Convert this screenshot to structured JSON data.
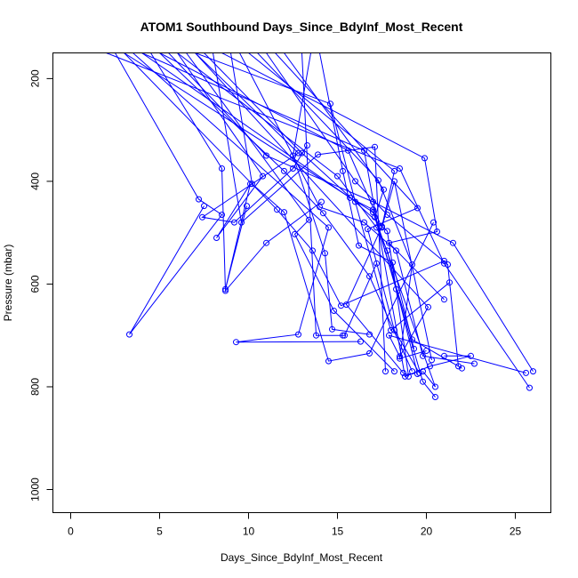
{
  "chart_data": {
    "type": "line",
    "title": "ATOM1 Southbound Days_Since_BdyInf_Most_Recent",
    "xlabel": "Days_Since_BdyInf_Most_Recent",
    "ylabel": "Pressure (mbar)",
    "xlim": [
      -1,
      27
    ],
    "ylim": [
      1045,
      150
    ],
    "y_reversed": true,
    "xticks": [
      0,
      5,
      10,
      15,
      20,
      25
    ],
    "yticks": [
      200,
      400,
      600,
      800,
      1000
    ],
    "grid": false,
    "color": "#0000ff",
    "series": [
      {
        "x": [
          2,
          18.5,
          21,
          25.8
        ],
        "y": [
          150,
          375,
          560,
          802
        ]
      },
      {
        "x": [
          2.5,
          7.2,
          8.5,
          3.3,
          7.5
        ],
        "y": [
          150,
          435,
          465,
          698,
          448
        ]
      },
      {
        "x": [
          3,
          17,
          20.5,
          19.8
        ],
        "y": [
          150,
          460,
          800,
          770
        ]
      },
      {
        "x": [
          3.5,
          14.5,
          12.8,
          9.3,
          16.3
        ],
        "y": [
          150,
          490,
          698,
          713,
          712
        ]
      },
      {
        "x": [
          4,
          16.5,
          18.8,
          20.2,
          22.5,
          21
        ],
        "y": [
          150,
          340,
          780,
          760,
          740,
          740
        ]
      },
      {
        "x": [
          4.5,
          8.5,
          8.7,
          11,
          14.1
        ],
        "y": [
          150,
          375,
          613,
          520,
          440
        ]
      },
      {
        "x": [
          5,
          15.6,
          17.5,
          18.2,
          20.3
        ],
        "y": [
          150,
          340,
          490,
          400,
          748
        ]
      },
      {
        "x": [
          5.5,
          11,
          17,
          21.5,
          26
        ],
        "y": [
          150,
          350,
          440,
          520,
          770
        ]
      },
      {
        "x": [
          6,
          15,
          17.2,
          17.8,
          19.5
        ],
        "y": [
          150,
          390,
          490,
          535,
          775
        ]
      },
      {
        "x": [
          6.5,
          13.4,
          12.6,
          14.8,
          18.2
        ],
        "y": [
          150,
          475,
          503,
          652,
          770
        ]
      },
      {
        "x": [
          7,
          14.6,
          16,
          18,
          21.3
        ],
        "y": [
          150,
          249,
          440,
          690,
          597
        ]
      },
      {
        "x": [
          7.5,
          13,
          17.8,
          18.3,
          19
        ],
        "y": [
          150,
          345,
          497,
          610,
          780
        ]
      },
      {
        "x": [
          8,
          9.6,
          13.9,
          17.1,
          17.7
        ],
        "y": [
          150,
          480,
          348,
          333,
          770
        ]
      },
      {
        "x": [
          8.5,
          19.9,
          20.6,
          17.9,
          21
        ],
        "y": [
          150,
          355,
          498,
          520,
          630
        ]
      },
      {
        "x": [
          9,
          10.2,
          12,
          14.5,
          16.8,
          20.4
        ],
        "y": [
          150,
          405,
          460,
          750,
          735,
          480
        ]
      },
      {
        "x": [
          9.5,
          14,
          16.5,
          18.3,
          19.8,
          22.7
        ],
        "y": [
          150,
          450,
          480,
          535,
          740,
          755
        ]
      },
      {
        "x": [
          10,
          18.2,
          17.5,
          15.5,
          18.7
        ],
        "y": [
          150,
          380,
          488,
          640,
          773
        ]
      },
      {
        "x": [
          10.5,
          17.3,
          19.2,
          18.5,
          20
        ],
        "y": [
          150,
          398,
          562,
          745,
          730
        ]
      },
      {
        "x": [
          11,
          16,
          17.8,
          21.2,
          21.8
        ],
        "y": [
          150,
          400,
          465,
          562,
          760
        ]
      },
      {
        "x": [
          11.5,
          19.5,
          16.7,
          18.2,
          19.6
        ],
        "y": [
          150,
          452,
          493,
          690,
          773
        ]
      },
      {
        "x": [
          12,
          17.6,
          17.1,
          19.2,
          22
        ],
        "y": [
          150,
          416,
          470,
          708,
          764
        ]
      },
      {
        "x": [
          6,
          10.8,
          8.2,
          10.1,
          8.7,
          9.9
        ],
        "y": [
          150,
          390,
          510,
          405,
          610,
          448
        ]
      },
      {
        "x": [
          7,
          12.8,
          7.4,
          9.2,
          12.5,
          13.3
        ],
        "y": [
          150,
          345,
          470,
          480,
          375,
          330
        ]
      },
      {
        "x": [
          13,
          13.8,
          15.3,
          15.4,
          17.2
        ],
        "y": [
          150,
          700,
          700,
          700,
          560
        ]
      },
      {
        "x": [
          13.5,
          12.5,
          14.3,
          14.7,
          16.8
        ],
        "y": [
          150,
          350,
          540,
          688,
          698
        ]
      },
      {
        "x": [
          14,
          15.3,
          16.2,
          18.1,
          19.3
        ],
        "y": [
          150,
          380,
          525,
          558,
          726
        ]
      },
      {
        "x": [
          3,
          11.6,
          13.6,
          15.2,
          21
        ],
        "y": [
          150,
          455,
          535,
          642,
          555
        ]
      },
      {
        "x": [
          4,
          15.7,
          17,
          19.8,
          20.5
        ],
        "y": [
          150,
          432,
          455,
          790,
          820
        ]
      },
      {
        "x": [
          5,
          12,
          14.2,
          16.8,
          19.2
        ],
        "y": [
          150,
          380,
          462,
          585,
          770
        ]
      },
      {
        "x": [
          7,
          20.1,
          18.5,
          17.9,
          25.6
        ],
        "y": [
          150,
          645,
          741,
          700,
          773
        ]
      }
    ]
  }
}
